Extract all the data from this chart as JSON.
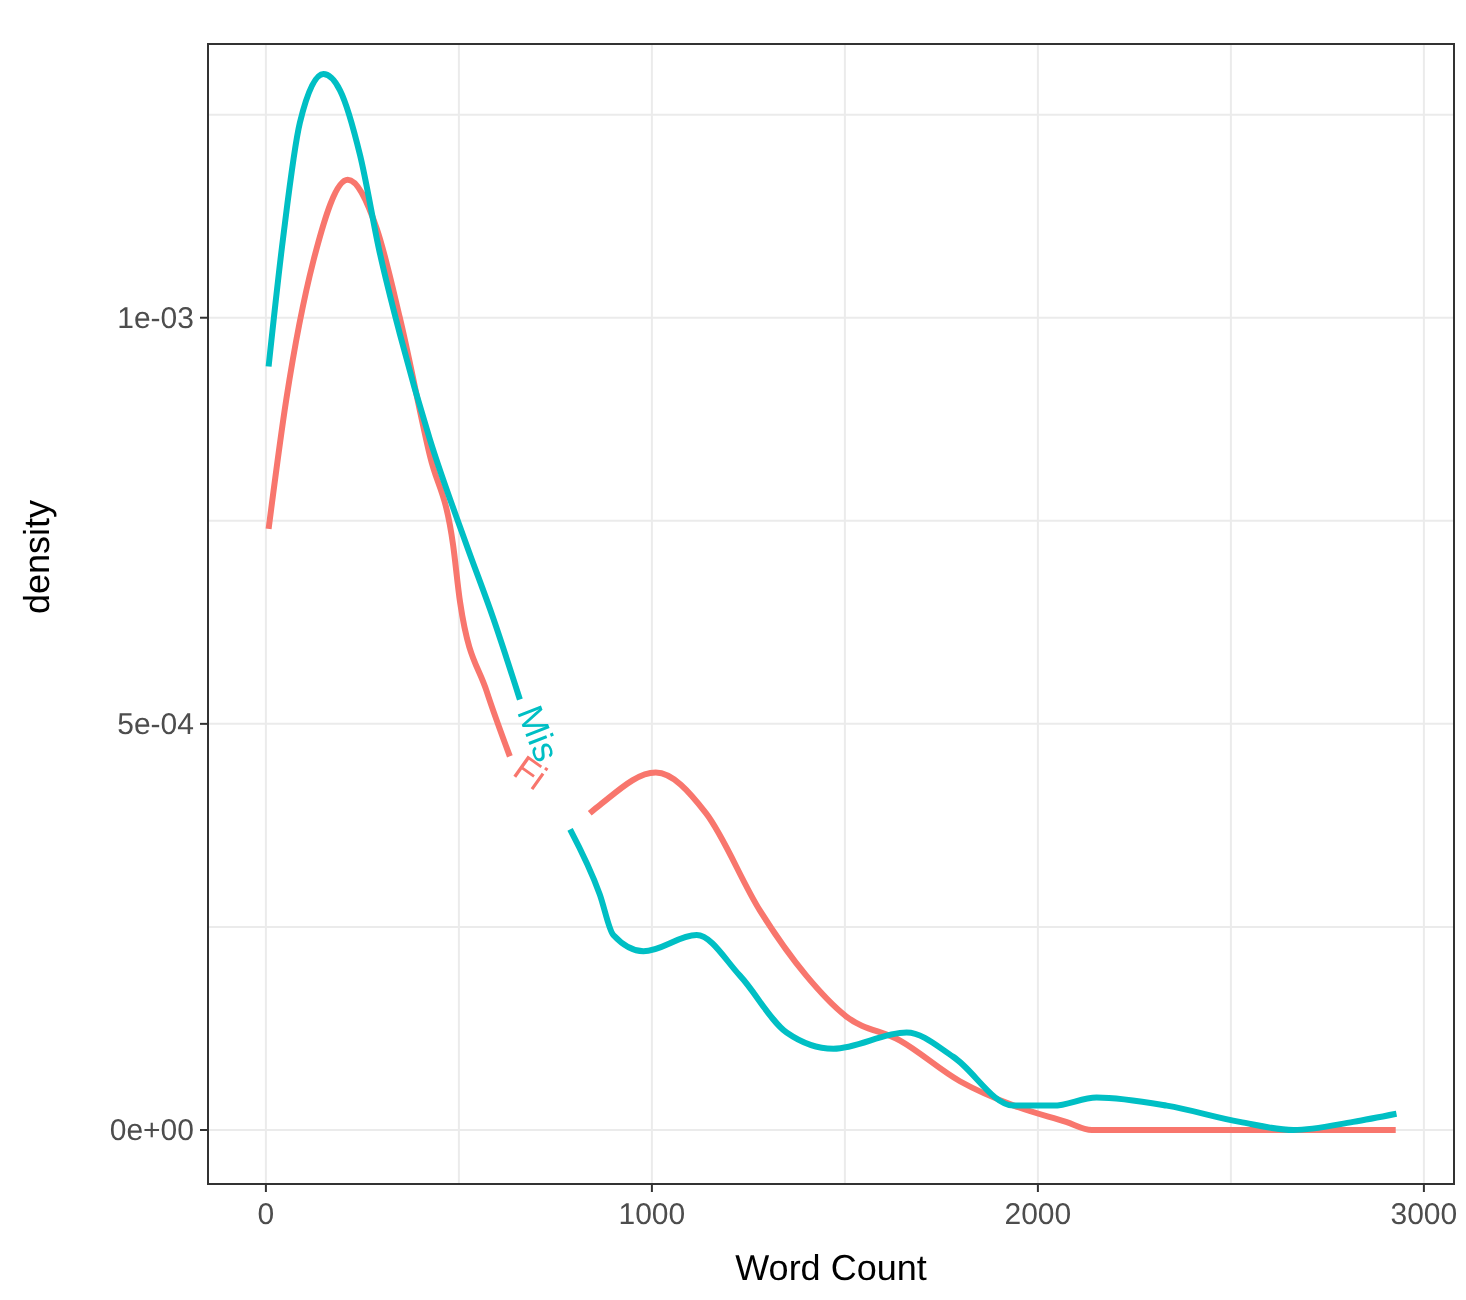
{
  "chart_data": {
    "type": "line",
    "xlabel": "Word Count",
    "ylabel": "density",
    "xlim": [
      -150,
      3078
    ],
    "ylim": [
      -6.65e-05,
      0.001337
    ],
    "xticks": [
      0,
      {
        "value": 500,
        "label": null
      },
      1000,
      {
        "value": 1500,
        "label": null
      },
      2000,
      {
        "value": 2500,
        "label": null
      },
      3000
    ],
    "yticks": [
      {
        "value": 0,
        "label": "0e+00"
      },
      {
        "value": 0.00025,
        "label": null
      },
      {
        "value": 0.0005,
        "label": "5e-04"
      },
      {
        "value": 0.00075,
        "label": null
      },
      {
        "value": 0.001,
        "label": "1e-03"
      },
      {
        "value": 0.00125,
        "label": null
      }
    ],
    "grid": true,
    "legend": false,
    "marker": "none",
    "line_style": "solid",
    "series": [
      {
        "name": "Fi",
        "color": "#f8766d",
        "x": [
          7,
          53,
          123,
          212,
          287,
          347,
          425,
          485,
          503,
          572,
          632,
          735,
          839,
          865,
          1010,
          1140,
          1280,
          1400,
          1503,
          1643,
          1798,
          1938,
          2073,
          2140,
          2500,
          2927
        ],
        "values": [
          0.00074,
          0.0009,
          0.00107,
          0.00117,
          0.00111,
          0.001,
          0.00083,
          0.00072,
          0.00065,
          0.00054,
          0.00046,
          null,
          0.00039,
          0.0004,
          0.00044,
          0.00039,
          0.00027,
          0.00019,
          0.00014,
          0.00011,
          6e-05,
          3e-05,
          1e-05,
          0,
          0,
          0
        ]
      },
      {
        "name": "Mis",
        "color": "#00bfc4",
        "x": [
          7,
          45,
          88,
          149,
          192,
          244,
          295,
          347,
          425,
          520,
          589,
          658,
          723,
          788,
          865,
          900,
          978,
          1116,
          1228,
          1349,
          1470,
          1660,
          1781,
          1936,
          2040,
          2152,
          2334,
          2523,
          2662,
          2817,
          2929
        ],
        "values": [
          0.00094,
          0.0011,
          0.00124,
          0.0013,
          0.00128,
          0.0012,
          0.00108,
          0.00098,
          0.00085,
          0.00072,
          0.00063,
          0.00053,
          null,
          0.00037,
          0.00029,
          0.00024,
          0.00022,
          0.00024,
          0.00019,
          0.00012,
          0.0001,
          0.00012,
          9e-05,
          3e-05,
          3e-05,
          4e-05,
          3e-05,
          1e-05,
          0,
          1e-05,
          2e-05
        ]
      }
    ]
  }
}
